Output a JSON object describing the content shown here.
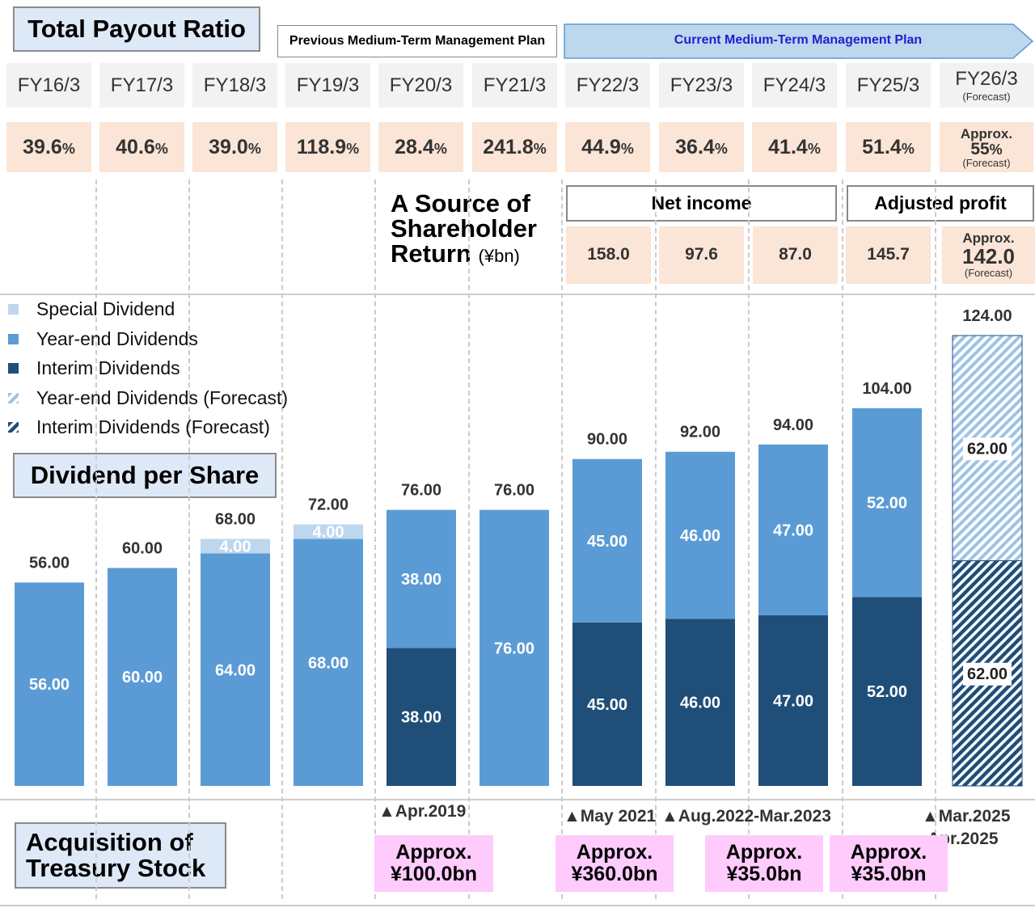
{
  "titles": {
    "payout": "Total Payout Ratio",
    "dps": "Dividend per Share",
    "acq": "Acquisition of Treasury Stock",
    "source": "A Source of Shareholder Return",
    "source_unit": "(¥bn)",
    "yen_unit": "(¥)"
  },
  "plans": {
    "previous": "Previous Medium-Term Management Plan",
    "current": "Current Medium-Term Management Plan"
  },
  "colors": {
    "special": "#bdd7ee",
    "year_end": "#5b9bd5",
    "interim": "#1f4e79",
    "payout_bg": "#fbe5d6",
    "acq_bg": "#fecbfc",
    "title_bg": "#dde9f6",
    "current_plan": "#bdd7ee"
  },
  "fiscal_years": [
    "FY16/3",
    "FY17/3",
    "FY18/3",
    "FY19/3",
    "FY20/3",
    "FY21/3",
    "FY22/3",
    "FY23/3",
    "FY24/3",
    "FY25/3",
    "FY26/3"
  ],
  "forecast_label": "(Forecast)",
  "approx_label": "Approx.",
  "payout_ratios": [
    "39.6",
    "40.6",
    "39.0",
    "118.9",
    "28.4",
    "241.8",
    "44.9",
    "36.4",
    "41.4",
    "51.4",
    "55"
  ],
  "pct_unit": "%",
  "profit": {
    "net_income_label": "Net income",
    "adjusted_label": "Adjusted profit",
    "values": [
      "158.0",
      "97.6",
      "87.0",
      "145.7",
      "142.0"
    ]
  },
  "acquisitions": [
    {
      "date": "▲Apr.2019",
      "amount": "¥100.0bn"
    },
    {
      "date": "▲May 2021",
      "amount": "¥360.0bn"
    },
    {
      "date": "▲Aug.2022-Mar.2023",
      "amount": "¥35.0bn"
    },
    {
      "date": "▲Mar.2025 -Apr.2025",
      "amount": "¥35.0bn"
    }
  ],
  "chart_data": {
    "type": "bar",
    "stacked": true,
    "categories": [
      "FY16/3",
      "FY17/3",
      "FY18/3",
      "FY19/3",
      "FY20/3",
      "FY21/3",
      "FY22/3",
      "FY23/3",
      "FY24/3",
      "FY25/3",
      "FY26/3"
    ],
    "series": [
      {
        "name": "Interim Dividends",
        "values": [
          0,
          0,
          0,
          0,
          38,
          0,
          45,
          46,
          47,
          52,
          0
        ]
      },
      {
        "name": "Year-end Dividends",
        "values": [
          56,
          60,
          64,
          68,
          38,
          76,
          45,
          46,
          47,
          52,
          0
        ]
      },
      {
        "name": "Special Dividend",
        "values": [
          0,
          0,
          4,
          4,
          0,
          0,
          0,
          0,
          0,
          0,
          0
        ]
      },
      {
        "name": "Interim Dividends (Forecast)",
        "values": [
          0,
          0,
          0,
          0,
          0,
          0,
          0,
          0,
          0,
          0,
          62
        ]
      },
      {
        "name": "Year-end Dividends (Forecast)",
        "values": [
          0,
          0,
          0,
          0,
          0,
          0,
          0,
          0,
          0,
          0,
          62
        ]
      }
    ],
    "totals": [
      "56.00",
      "60.00",
      "68.00",
      "72.00",
      "76.00",
      "76.00",
      "90.00",
      "92.00",
      "94.00",
      "104.00",
      "124.00"
    ],
    "legend_position": "top-left",
    "grid": false,
    "ylim": [
      0,
      124
    ]
  }
}
